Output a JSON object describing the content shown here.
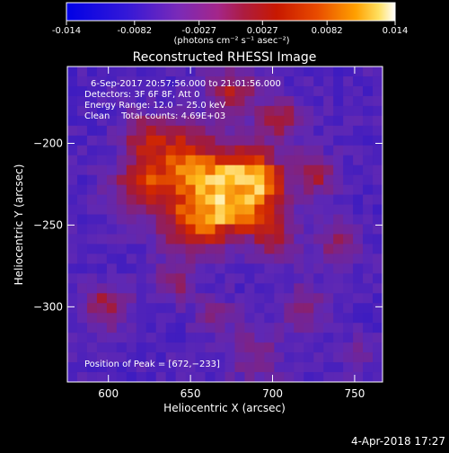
{
  "colorbar": {
    "ticks": [
      "-0.014",
      "-0.0082",
      "-0.0027",
      "0.0027",
      "0.0082",
      "0.014"
    ],
    "tick_values": [
      -0.014,
      -0.0082,
      -0.0027,
      0.0027,
      0.0082,
      0.014
    ],
    "range": [
      -0.014,
      0.014
    ],
    "units": "(photons cm⁻² s⁻¹ asec⁻²)"
  },
  "chart_data": {
    "type": "heatmap",
    "title": "Reconstructed RHESSI Image",
    "xlabel": "Heliocentric X (arcsec)",
    "ylabel": "Heliocentric Y (arcsec)",
    "xlim": [
      575,
      767
    ],
    "ylim": [
      -346,
      -153
    ],
    "x_ticks": [
      600,
      650,
      700,
      750
    ],
    "y_ticks": [
      -200,
      -250,
      -300
    ],
    "x_tick_labels": [
      "600",
      "650",
      "700",
      "750"
    ],
    "y_tick_labels": [
      "−200",
      "−250",
      "−300"
    ],
    "colormap": "blue-purple-red-orange-yellow-white",
    "info_lines": [
      "6-Sep-2017 20:57:56.000 to 21:01:56.000",
      "Detectors: 3F 6F 8F, Att 0",
      "Energy Range: 12.0 − 25.0 keV",
      "Clean    Total counts: 4.69E+03"
    ],
    "peak_label": "Position of Peak = [672,−233]",
    "peak": [
      672,
      -233
    ]
  },
  "footer": {
    "timestamp": "4-Apr-2018 17:27"
  }
}
